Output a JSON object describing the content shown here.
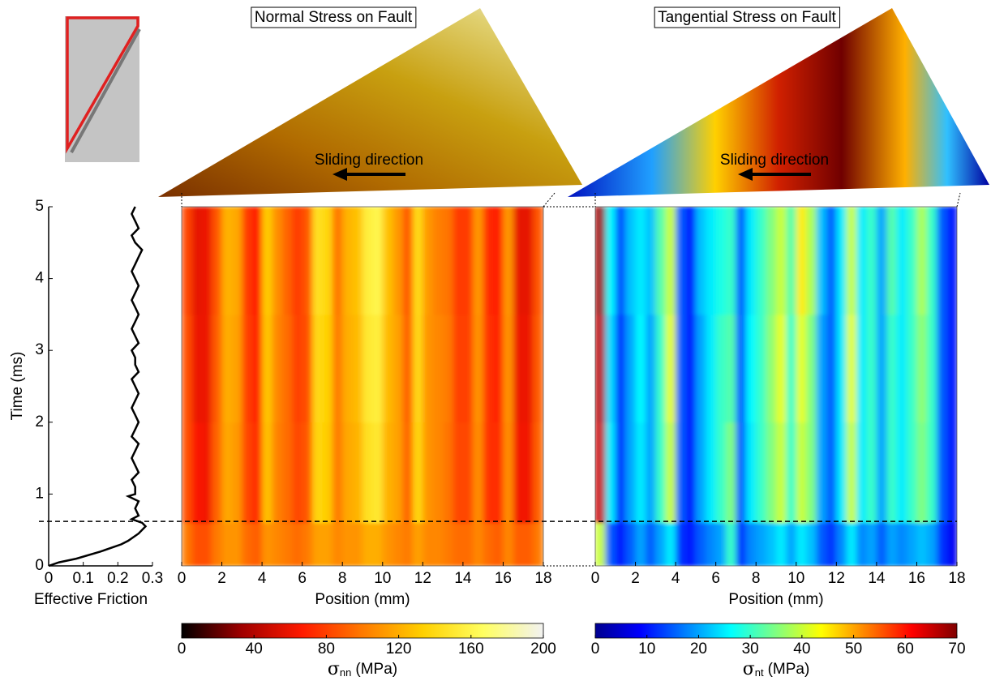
{
  "chart_data": [
    {
      "type": "line",
      "orientation": "vertical",
      "xlabel": "Effective Friction",
      "ylabel": "Time (ms)",
      "xlim": [
        0,
        0.3
      ],
      "xticks": [
        0,
        0.1,
        0.2,
        0.3
      ],
      "ylim": [
        0,
        5
      ],
      "yticks": [
        0,
        1,
        2,
        3,
        4,
        5
      ],
      "hline": 0.62,
      "color": "#000000",
      "y": [
        0,
        0.05,
        0.1,
        0.2,
        0.3,
        0.35,
        0.45,
        0.55,
        0.6,
        0.65,
        0.7,
        0.8,
        0.9,
        0.97,
        1.0,
        1.1,
        1.2,
        1.3,
        1.4,
        1.5,
        1.6,
        1.7,
        1.8,
        1.9,
        2.0,
        2.1,
        2.2,
        2.3,
        2.4,
        2.5,
        2.6,
        2.7,
        2.8,
        2.9,
        3.0,
        3.1,
        3.2,
        3.3,
        3.4,
        3.5,
        3.6,
        3.7,
        3.8,
        3.9,
        4.0,
        4.1,
        4.2,
        4.3,
        4.4,
        4.5,
        4.6,
        4.7,
        4.8,
        4.9,
        5.0
      ],
      "values": [
        0,
        0.03,
        0.08,
        0.15,
        0.21,
        0.23,
        0.26,
        0.28,
        0.27,
        0.24,
        0.26,
        0.25,
        0.26,
        0.23,
        0.25,
        0.25,
        0.24,
        0.26,
        0.25,
        0.24,
        0.25,
        0.26,
        0.24,
        0.25,
        0.26,
        0.25,
        0.24,
        0.25,
        0.26,
        0.25,
        0.24,
        0.26,
        0.25,
        0.25,
        0.24,
        0.26,
        0.25,
        0.24,
        0.25,
        0.26,
        0.25,
        0.24,
        0.25,
        0.26,
        0.25,
        0.24,
        0.25,
        0.26,
        0.27,
        0.25,
        0.24,
        0.26,
        0.25,
        0.24,
        0.25
      ]
    },
    {
      "type": "heatmap",
      "title": "Normal Stress on Fault",
      "annotation": "Sliding direction",
      "xlabel": "Position (mm)",
      "xlim": [
        0,
        18
      ],
      "xticks": [
        0,
        2,
        4,
        6,
        8,
        10,
        12,
        14,
        16,
        18
      ],
      "ylim": [
        0,
        5
      ],
      "xbins": [
        0,
        0.5,
        1,
        1.5,
        2,
        2.5,
        3,
        3.5,
        4,
        4.5,
        5,
        5.5,
        6,
        6.5,
        7,
        7.5,
        8,
        8.5,
        9,
        9.5,
        10,
        10.5,
        11,
        11.5,
        12,
        12.5,
        13,
        13.5,
        14,
        14.5,
        15,
        15.5,
        16,
        16.5,
        17,
        17.5,
        18
      ],
      "ybins": [
        0,
        0.6,
        2,
        3.5,
        5
      ],
      "values": [
        [
          100,
          85,
          85,
          100,
          110,
          110,
          95,
          90,
          110,
          105,
          100,
          95,
          100,
          115,
          115,
          105,
          110,
          110,
          120,
          120,
          110,
          105,
          100,
          115,
          105,
          105,
          100,
          95,
          95,
          105,
          95,
          90,
          105,
          90,
          90,
          100
        ],
        [
          85,
          65,
          62,
          92,
          118,
          112,
          82,
          72,
          128,
          103,
          95,
          82,
          88,
          138,
          132,
          100,
          118,
          122,
          145,
          150,
          122,
          115,
          92,
          138,
          110,
          105,
          98,
          82,
          82,
          108,
          75,
          72,
          108,
          62,
          62,
          92
        ],
        [
          85,
          60,
          60,
          90,
          120,
          115,
          80,
          70,
          130,
          105,
          95,
          80,
          85,
          140,
          135,
          100,
          120,
          125,
          150,
          155,
          125,
          115,
          90,
          140,
          110,
          105,
          100,
          80,
          80,
          110,
          75,
          70,
          110,
          60,
          60,
          90
        ],
        [
          82,
          58,
          60,
          88,
          122,
          118,
          78,
          68,
          132,
          108,
          92,
          78,
          88,
          145,
          138,
          98,
          122,
          128,
          155,
          160,
          128,
          112,
          88,
          142,
          112,
          102,
          98,
          78,
          78,
          112,
          72,
          68,
          112,
          58,
          58,
          88
        ]
      ],
      "colorbar": {
        "label_symbol": "σ",
        "label_subscript": "nn",
        "label_unit": "(MPa)",
        "lim": [
          0,
          200
        ],
        "ticks": [
          0,
          40,
          80,
          120,
          160,
          200
        ],
        "colormap": [
          "#000000",
          "#a00000",
          "#ff1a00",
          "#ff7a00",
          "#ffd000",
          "#ffff60",
          "#f2f2f2"
        ]
      }
    },
    {
      "type": "heatmap",
      "title": "Tangential Stress on Fault",
      "annotation": "Sliding direction",
      "xlabel": "Position (mm)",
      "xlim": [
        0,
        18
      ],
      "xticks": [
        0,
        2,
        4,
        6,
        8,
        10,
        12,
        14,
        16,
        18
      ],
      "ylim": [
        0,
        5
      ],
      "xbins": [
        0,
        0.5,
        1,
        1.5,
        2,
        2.5,
        3,
        3.5,
        4,
        4.5,
        5,
        5.5,
        6,
        6.5,
        7,
        7.5,
        8,
        8.5,
        9,
        9.5,
        10,
        10.5,
        11,
        11.5,
        12,
        12.5,
        13,
        13.5,
        14,
        14.5,
        15,
        15.5,
        16,
        16.5,
        17,
        17.5,
        18
      ],
      "ybins": [
        0,
        0.6,
        2,
        3.5,
        5
      ],
      "values": [
        [
          40,
          15,
          10,
          15,
          20,
          15,
          20,
          25,
          12,
          10,
          15,
          18,
          20,
          30,
          12,
          18,
          20,
          22,
          25,
          20,
          25,
          22,
          15,
          12,
          18,
          25,
          18,
          20,
          15,
          20,
          18,
          20,
          22,
          20,
          12,
          8
        ],
        [
          65,
          25,
          12,
          20,
          25,
          20,
          30,
          40,
          15,
          10,
          20,
          25,
          30,
          35,
          15,
          25,
          30,
          35,
          40,
          30,
          40,
          35,
          20,
          15,
          25,
          40,
          25,
          30,
          20,
          30,
          25,
          30,
          35,
          30,
          15,
          10
        ],
        [
          66,
          24,
          12,
          20,
          26,
          20,
          30,
          42,
          15,
          10,
          20,
          25,
          30,
          32,
          15,
          26,
          30,
          36,
          42,
          30,
          42,
          35,
          20,
          15,
          25,
          42,
          25,
          30,
          20,
          30,
          25,
          30,
          36,
          30,
          15,
          10
        ],
        [
          68,
          26,
          14,
          22,
          25,
          22,
          32,
          40,
          15,
          10,
          22,
          25,
          28,
          30,
          15,
          25,
          30,
          35,
          40,
          32,
          45,
          38,
          22,
          15,
          25,
          40,
          25,
          30,
          20,
          32,
          25,
          30,
          38,
          30,
          15,
          10
        ]
      ],
      "colorbar": {
        "label_symbol": "σ",
        "label_subscript": "nt",
        "label_unit": "(MPa)",
        "lim": [
          0,
          70
        ],
        "ticks": [
          0,
          10,
          20,
          30,
          40,
          50,
          60,
          70
        ],
        "colormap": [
          "#00008f",
          "#0000ff",
          "#0080ff",
          "#00ffff",
          "#80ff80",
          "#ffff00",
          "#ff8000",
          "#ff0000",
          "#800000"
        ]
      }
    }
  ]
}
